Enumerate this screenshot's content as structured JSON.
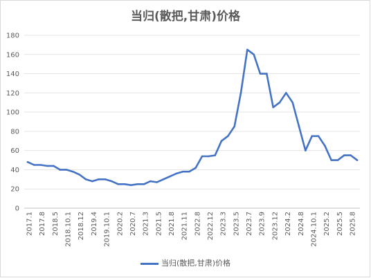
{
  "chart_data": {
    "type": "line",
    "title": "当归(散把,甘肃)价格",
    "xlabel": "",
    "ylabel": "",
    "ylim": [
      0,
      180
    ],
    "yticks": [
      0,
      20,
      40,
      60,
      80,
      100,
      120,
      140,
      160,
      180
    ],
    "grid": true,
    "legend_position": "bottom",
    "color": "#4472c4",
    "xtick_labels": [
      "2017.1",
      "2017.8",
      "2018.5",
      "2018.10.1",
      "2018.12",
      "2019.4",
      "2019.10.1",
      "2020.2",
      "2020.7",
      "2021.3",
      "2021.5",
      "2021.8",
      "2021.11",
      "2022.8",
      "2022.12",
      "2023.3",
      "2023.5",
      "2023.7",
      "2023.9",
      "2023.12",
      "2024.2",
      "2024.8",
      "2024.10.1",
      "2025.2",
      "2025.5",
      "2025.8"
    ],
    "series": [
      {
        "name": "当归(散把,甘肃)价格",
        "values": [
          48,
          45,
          45,
          44,
          44,
          40,
          40,
          38,
          35,
          30,
          28,
          30,
          30,
          28,
          25,
          25,
          24,
          25,
          25,
          28,
          27,
          30,
          33,
          36,
          38,
          38,
          42,
          54,
          54,
          55,
          70,
          75,
          85,
          120,
          165,
          160,
          140,
          140,
          105,
          110,
          120,
          110,
          85,
          60,
          75,
          75,
          65,
          50,
          50,
          55,
          55,
          50
        ]
      }
    ]
  }
}
